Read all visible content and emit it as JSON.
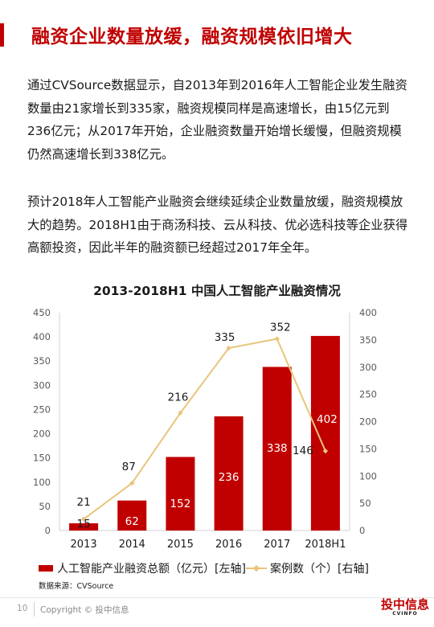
{
  "header": {
    "title": "融资企业数量放缓，融资规模依旧增大"
  },
  "body": {
    "paragraph_1": "通过CVSource数据显示，自2013年到2016年人工智能企业发生融资数量由21家增长到335家，融资规模同样是高速增长，由15亿元到236亿元；从2017年开始，企业融资数量开始增长缓慢，但融资规模仍然高速增长到338亿元。",
    "paragraph_2": "预计2018年人工智能产业融资会继续延续企业数量放缓，融资规模放大的趋势。2018H1由于商汤科技、云从科技、优必选科技等企业获得高额投资，因此半年的融资额已经超过2017年全年。"
  },
  "chart_data": {
    "type": "bar+line",
    "title": "2013-2018H1 中国人工智能产业融资情况",
    "categories": [
      "2013",
      "2014",
      "2015",
      "2016",
      "2017",
      "2018H1"
    ],
    "left_axis": {
      "ylim": [
        0,
        450
      ],
      "ticks": [
        "0",
        "50",
        "100",
        "150",
        "200",
        "250",
        "300",
        "350",
        "400",
        "450"
      ]
    },
    "right_axis": {
      "ylim": [
        0,
        400
      ],
      "ticks": [
        "0",
        "50",
        "100",
        "150",
        "200",
        "250",
        "300",
        "350",
        "400"
      ]
    },
    "series": [
      {
        "name": "人工智能产业融资总额（亿元）[左轴]",
        "kind": "bar",
        "axis": "left",
        "color": "#c00000",
        "values": [
          15,
          62,
          152,
          236,
          338,
          402
        ],
        "labels": [
          "15",
          "62",
          "152",
          "236",
          "338",
          "402"
        ]
      },
      {
        "name": "案例数（个）[右轴]",
        "kind": "line",
        "axis": "right",
        "color": "#e8c57a",
        "values": [
          21,
          87,
          216,
          335,
          352,
          146
        ],
        "labels": [
          "21",
          "87",
          "216",
          "335",
          "352",
          "146"
        ]
      }
    ],
    "grid": false,
    "legend": "bottom"
  },
  "source": "数据来源：CVSource",
  "footer": {
    "page_number": "10",
    "copyright": "Copyright © 投中信息",
    "logo_main": "投中信息",
    "logo_sub": "CVINFO"
  }
}
